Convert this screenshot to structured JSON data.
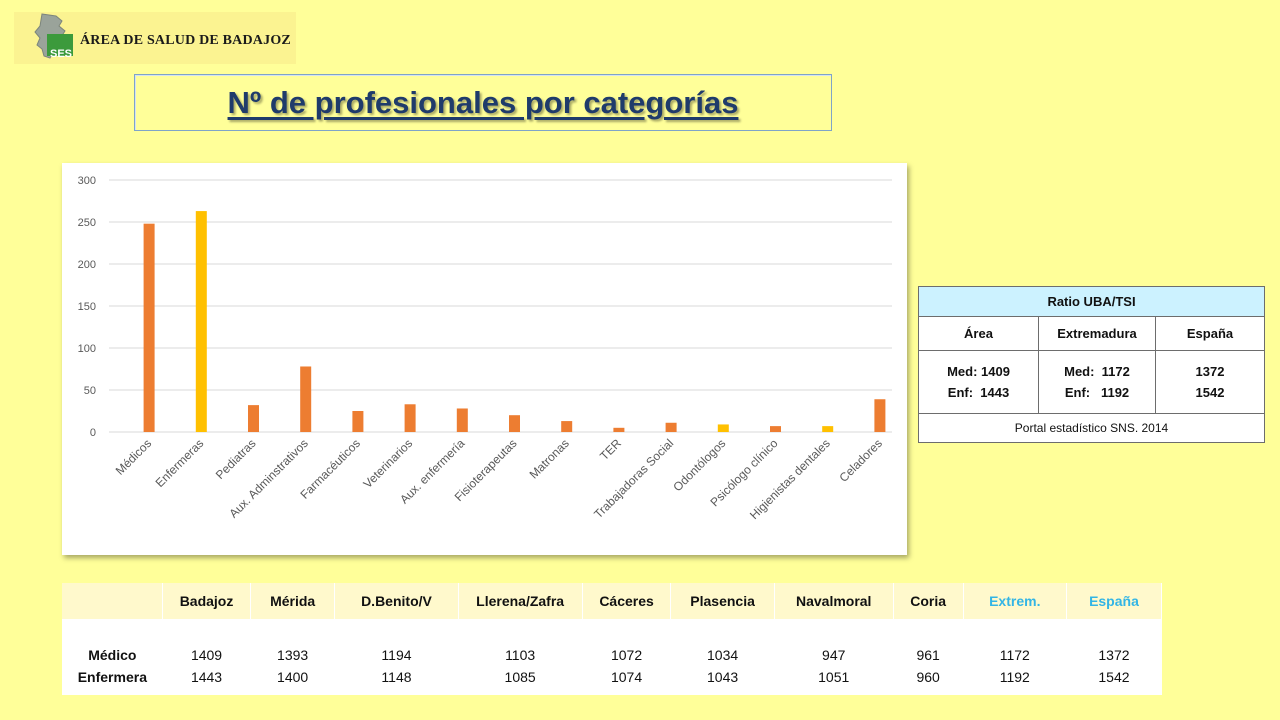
{
  "header": {
    "logo_abbr": "SES",
    "logo_text": "ÁREA DE SALUD DE BADAJOZ",
    "title": "Nº de profesionales por categorías"
  },
  "colors": {
    "bar_orange": "#ed7d31",
    "bar_yellow": "#ffc000",
    "logo_green": "#3c9a3c",
    "title_color": "#1f3b6b"
  },
  "chart_data": {
    "type": "bar",
    "categories": [
      "Médicos",
      "Enfermeras",
      "Pediatras",
      "Aux. Adminstrativos",
      "Farmacéuticos",
      "Veterinarios",
      "Aux. enfermería",
      "Fisioterapeutas",
      "Matronas",
      "TER",
      "Trabajadoras Social",
      "Odontólogos",
      "Psicólogo clínico",
      "Higienistas dentales",
      "Celadores"
    ],
    "values": [
      248,
      263,
      32,
      78,
      25,
      33,
      28,
      20,
      13,
      5,
      11,
      9,
      7,
      7,
      39
    ],
    "bar_colors": [
      "#ed7d31",
      "#ffc000",
      "#ed7d31",
      "#ed7d31",
      "#ed7d31",
      "#ed7d31",
      "#ed7d31",
      "#ed7d31",
      "#ed7d31",
      "#ed7d31",
      "#ed7d31",
      "#ffc000",
      "#ed7d31",
      "#ffc000",
      "#ed7d31"
    ],
    "ylim": [
      0,
      300
    ],
    "yticks": [
      0,
      50,
      100,
      150,
      200,
      250,
      300
    ],
    "grid": true,
    "title": "",
    "xlabel": "",
    "ylabel": ""
  },
  "ratio_table": {
    "title": "Ratio UBA/TSI",
    "columns": [
      "Área",
      "Extremadura",
      "España"
    ],
    "values": [
      [
        "Med: 1409",
        "Enf:  1443"
      ],
      [
        "Med:  1172",
        "Enf:   1192"
      ],
      [
        "1372",
        "1542"
      ]
    ],
    "source": "Portal estadístico SNS. 2014"
  },
  "areas_table": {
    "columns": [
      "Badajoz",
      "Mérida",
      "D.Benito/V",
      "Llerena/Zafra",
      "Cáceres",
      "Plasencia",
      "Navalmoral",
      "Coria",
      "Extrem.",
      "España"
    ],
    "row_labels": [
      "Médico",
      "Enfermera"
    ],
    "medico": [
      "1409",
      "1393",
      "1194",
      "1103",
      "1072",
      "1034",
      "947",
      "961",
      "1172",
      "1372"
    ],
    "enfermera": [
      "1443",
      "1400",
      "1148",
      "1085",
      "1074",
      "1043",
      "1051",
      "960",
      "1192",
      "1542"
    ]
  }
}
